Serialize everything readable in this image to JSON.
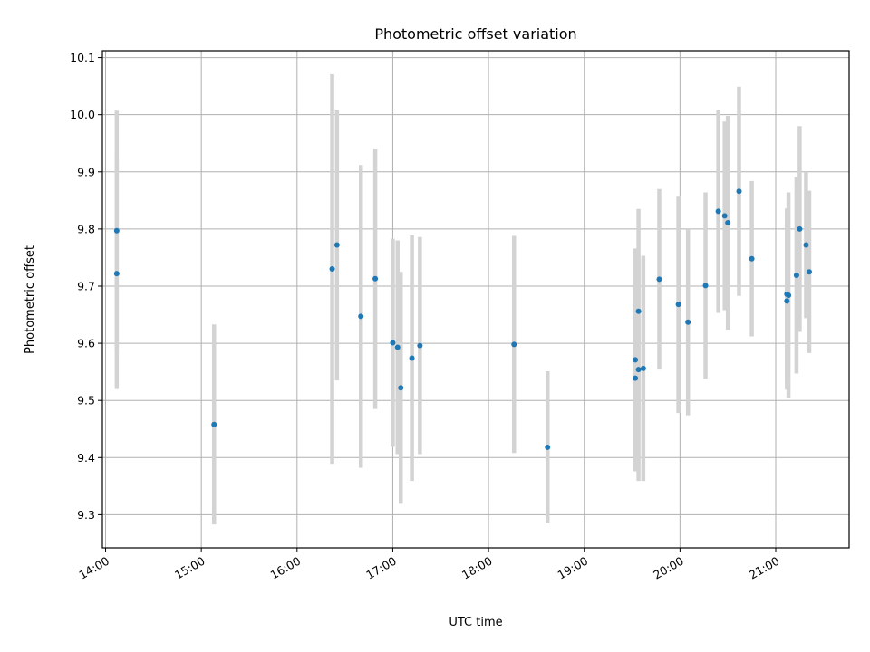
{
  "chart_data": {
    "type": "scatter",
    "title": "Photometric offset variation",
    "xlabel": "UTC time",
    "ylabel": "Photometric offset",
    "x_tick_labels": [
      "14:00",
      "15:00",
      "16:00",
      "17:00",
      "18:00",
      "19:00",
      "20:00",
      "21:00"
    ],
    "y_tick_labels": [
      "9.3",
      "9.4",
      "9.5",
      "9.6",
      "9.7",
      "9.8",
      "9.9",
      "10.0",
      "10.1"
    ],
    "xlim": [
      "13:58",
      "21:46"
    ],
    "ylim": [
      9.242,
      10.112
    ],
    "grid": true,
    "errorbar_color": "#d3d3d3",
    "point_color": "#1f77b4",
    "points": [
      {
        "x": "14:07",
        "y": 9.797,
        "err": 0.21
      },
      {
        "x": "14:07",
        "y": 9.722,
        "err": 0.202
      },
      {
        "x": "15:08",
        "y": 9.458,
        "err": 0.175
      },
      {
        "x": "16:22",
        "y": 9.73,
        "err": 0.341
      },
      {
        "x": "16:25",
        "y": 9.772,
        "err": 0.237
      },
      {
        "x": "16:40",
        "y": 9.647,
        "err": 0.265
      },
      {
        "x": "16:49",
        "y": 9.713,
        "err": 0.228
      },
      {
        "x": "17:00",
        "y": 9.601,
        "err": 0.182
      },
      {
        "x": "17:03",
        "y": 9.593,
        "err": 0.187
      },
      {
        "x": "17:05",
        "y": 9.522,
        "err": 0.203
      },
      {
        "x": "17:12",
        "y": 9.574,
        "err": 0.215
      },
      {
        "x": "17:17",
        "y": 9.596,
        "err": 0.19
      },
      {
        "x": "18:16",
        "y": 9.598,
        "err": 0.19
      },
      {
        "x": "18:37",
        "y": 9.418,
        "err": 0.133
      },
      {
        "x": "19:32",
        "y": 9.571,
        "err": 0.195
      },
      {
        "x": "19:32",
        "y": 9.539,
        "err": 0.16
      },
      {
        "x": "19:34",
        "y": 9.554,
        "err": 0.195
      },
      {
        "x": "19:34",
        "y": 9.656,
        "err": 0.179
      },
      {
        "x": "19:37",
        "y": 9.556,
        "err": 0.197
      },
      {
        "x": "19:47",
        "y": 9.712,
        "err": 0.158
      },
      {
        "x": "19:59",
        "y": 9.668,
        "err": 0.19
      },
      {
        "x": "20:05",
        "y": 9.637,
        "err": 0.163
      },
      {
        "x": "20:16",
        "y": 9.701,
        "err": 0.163
      },
      {
        "x": "20:24",
        "y": 9.831,
        "err": 0.178
      },
      {
        "x": "20:28",
        "y": 9.823,
        "err": 0.165
      },
      {
        "x": "20:30",
        "y": 9.811,
        "err": 0.187
      },
      {
        "x": "20:37",
        "y": 9.866,
        "err": 0.183
      },
      {
        "x": "20:45",
        "y": 9.748,
        "err": 0.136
      },
      {
        "x": "21:07",
        "y": 9.686,
        "err": 0.15
      },
      {
        "x": "21:07",
        "y": 9.674,
        "err": 0.155
      },
      {
        "x": "21:08",
        "y": 9.684,
        "err": 0.18
      },
      {
        "x": "21:13",
        "y": 9.719,
        "err": 0.172
      },
      {
        "x": "21:15",
        "y": 9.8,
        "err": 0.18
      },
      {
        "x": "21:19",
        "y": 9.772,
        "err": 0.128
      },
      {
        "x": "21:21",
        "y": 9.725,
        "err": 0.142
      }
    ]
  }
}
